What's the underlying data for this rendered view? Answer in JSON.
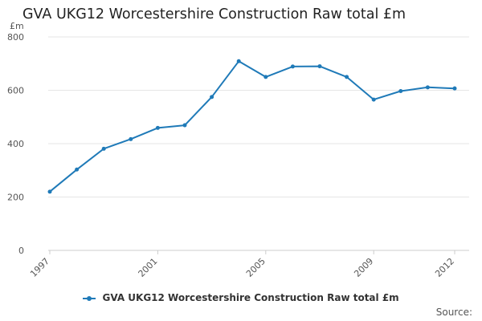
{
  "chart_data": {
    "type": "line",
    "title": "GVA UKG12 Worcestershire Construction Raw total £m",
    "ylabel": "£m",
    "xlabel": "",
    "ylim": [
      0,
      800
    ],
    "yticks": [
      0,
      200,
      400,
      600,
      800
    ],
    "xticks": [
      1997,
      2001,
      2005,
      2009,
      2012
    ],
    "grid": true,
    "legend_position": "bottom",
    "colors": {
      "series": "#1f7ab8",
      "grid": "#e6e6e6"
    },
    "series": [
      {
        "name": "GVA UKG12 Worcestershire Construction Raw total £m",
        "x": [
          1997,
          1998,
          1999,
          2000,
          2001,
          2002,
          2003,
          2004,
          2005,
          2006,
          2007,
          2008,
          2009,
          2010,
          2011,
          2012
        ],
        "values": [
          220,
          303,
          381,
          417,
          459,
          469,
          575,
          709,
          650,
          689,
          690,
          650,
          565,
          597,
          611,
          607
        ]
      }
    ]
  },
  "source_label": "Source:"
}
